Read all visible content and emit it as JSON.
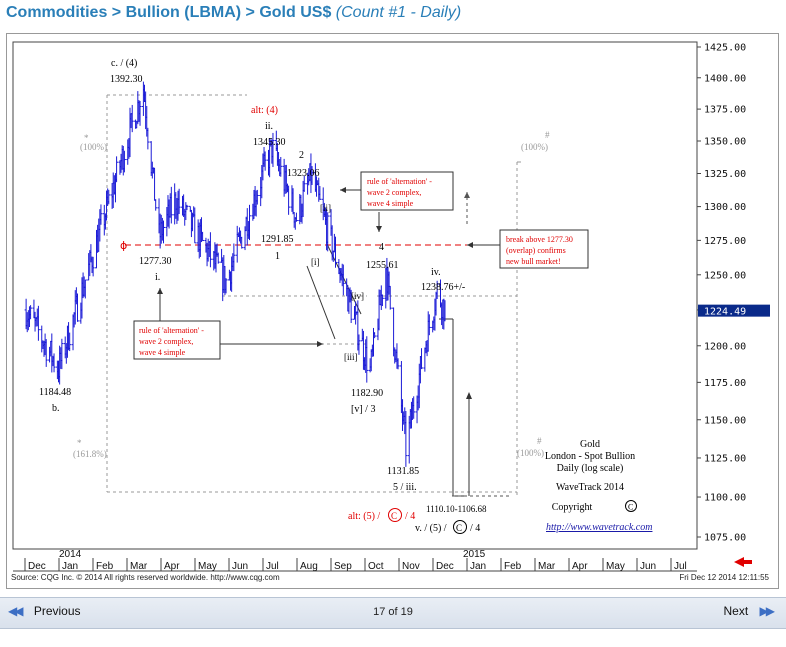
{
  "header": {
    "breadcrumb": "Commodities > Bullion (LBMA) > Gold US$",
    "subtitle": "(Count #1 - Daily)"
  },
  "chart_data": {
    "type": "candlestick",
    "y_scale": "log",
    "ylim": [
      1065,
      1432
    ],
    "y_ticks": [
      "1425.00",
      "1400.00",
      "1375.00",
      "1350.00",
      "1325.00",
      "1300.00",
      "1275.00",
      "1250.00",
      "1225.00",
      "1200.00",
      "1175.00",
      "1150.00",
      "1125.00",
      "1100.00",
      "1075.00"
    ],
    "x_ticks": [
      "Dec",
      "Jan",
      "Feb",
      "Mar",
      "Apr",
      "May",
      "Jun",
      "Jul",
      "Aug",
      "Sep",
      "Oct",
      "Nov",
      "Dec",
      "Jan",
      "Feb",
      "Mar",
      "Apr",
      "May",
      "Jun",
      "Jul"
    ],
    "year_labels": [
      "2014",
      "2015"
    ],
    "last_price": "1224.49",
    "anchors": [
      {
        "date": "2013-12-02",
        "price": 1225
      },
      {
        "date": "2013-12-31",
        "price": 1184.48
      },
      {
        "date": "2014-03-17",
        "price": 1392.3
      },
      {
        "date": "2014-03-31",
        "price": 1277.3
      },
      {
        "date": "2014-04-15",
        "price": 1305
      },
      {
        "date": "2014-05-30",
        "price": 1245
      },
      {
        "date": "2014-07-10",
        "price": 1345.3
      },
      {
        "date": "2014-08-01",
        "price": 1291.85
      },
      {
        "date": "2014-08-14",
        "price": 1323.06
      },
      {
        "date": "2014-09-10",
        "price": 1250
      },
      {
        "date": "2014-10-06",
        "price": 1182.9
      },
      {
        "date": "2014-10-20",
        "price": 1255.61
      },
      {
        "date": "2014-11-07",
        "price": 1131.85
      },
      {
        "date": "2014-11-24",
        "price": 1200
      },
      {
        "date": "2014-12-05",
        "price": 1238.76
      },
      {
        "date": "2014-12-12",
        "price": 1224.49
      }
    ]
  },
  "annotations": {
    "peak_label": "c. / (4)",
    "peak_value": "1392.30",
    "low_value_left": "1184.48",
    "low_label_left": "b.",
    "fib_100_left": "(100%)",
    "fib_1618_left": "(161.8%)",
    "alt4": "alt: (4)",
    "ii_label": "ii.",
    "ii_value": "1345.30",
    "two_label": "2",
    "two_value": "1323.06",
    "box_top_line1": "rule of 'alternation' -",
    "box_top_line2": "wave 2 complex,",
    "box_top_line3": "wave 4 simple",
    "roman_ii": "[ii]",
    "roman_i": "[i]",
    "one_value": "1291.85",
    "one_label": "1",
    "four_label": "4",
    "four_value": "1255.61",
    "iv_label": "iv.",
    "iv_value": "1238.76+/-",
    "low_value_mid": "1277.30",
    "low_label_mid": "i.",
    "roman_iv": "[iv]",
    "roman_iii": "[iii]",
    "box_left_line1": "rule of 'alternation' -",
    "box_left_line2": "wave 2 complex,",
    "box_left_line3": "wave 4 simple",
    "v3_value": "1182.90",
    "v3_label": "[v] / 3",
    "low_nov_value": "1131.85",
    "low_nov_label": "5 / iii.",
    "alt5": "alt: (5) /",
    "alt5_circle": "C",
    "alt5_tail": "/ 4",
    "target_range": "1110.10-1106.68",
    "target_label_a": "v. / (5) /",
    "target_circle": "C",
    "target_label_b": "/ 4",
    "box_right_line1": "break above 1277.30",
    "box_right_line2": "(overlap) confirms",
    "box_right_line3": "new bull market!",
    "fib_100_right_top": "(100%)",
    "fib_100_right_bot": "(100%)",
    "legend_title": "Gold",
    "legend_line2": "London - Spot Bullion",
    "legend_line3": "Daily (log scale)",
    "legend_line4": "WaveTrack 2014",
    "legend_copyright": "Copyright",
    "legend_url": "http://www.wavetrack.com"
  },
  "footer": {
    "source": "Source: CQG Inc. © 2014 All rights reserved worldwide. http://www.cqg.com",
    "timestamp": "Fri Dec 12 2014 12:11:55"
  },
  "nav": {
    "prev_label": "Previous",
    "next_label": "Next",
    "counter": "17 of 19"
  },
  "colors": {
    "candles": "#1a1ad6",
    "alt_red": "#e00000",
    "link_blue": "#1a1aa8",
    "grid_dash": "#999999"
  }
}
